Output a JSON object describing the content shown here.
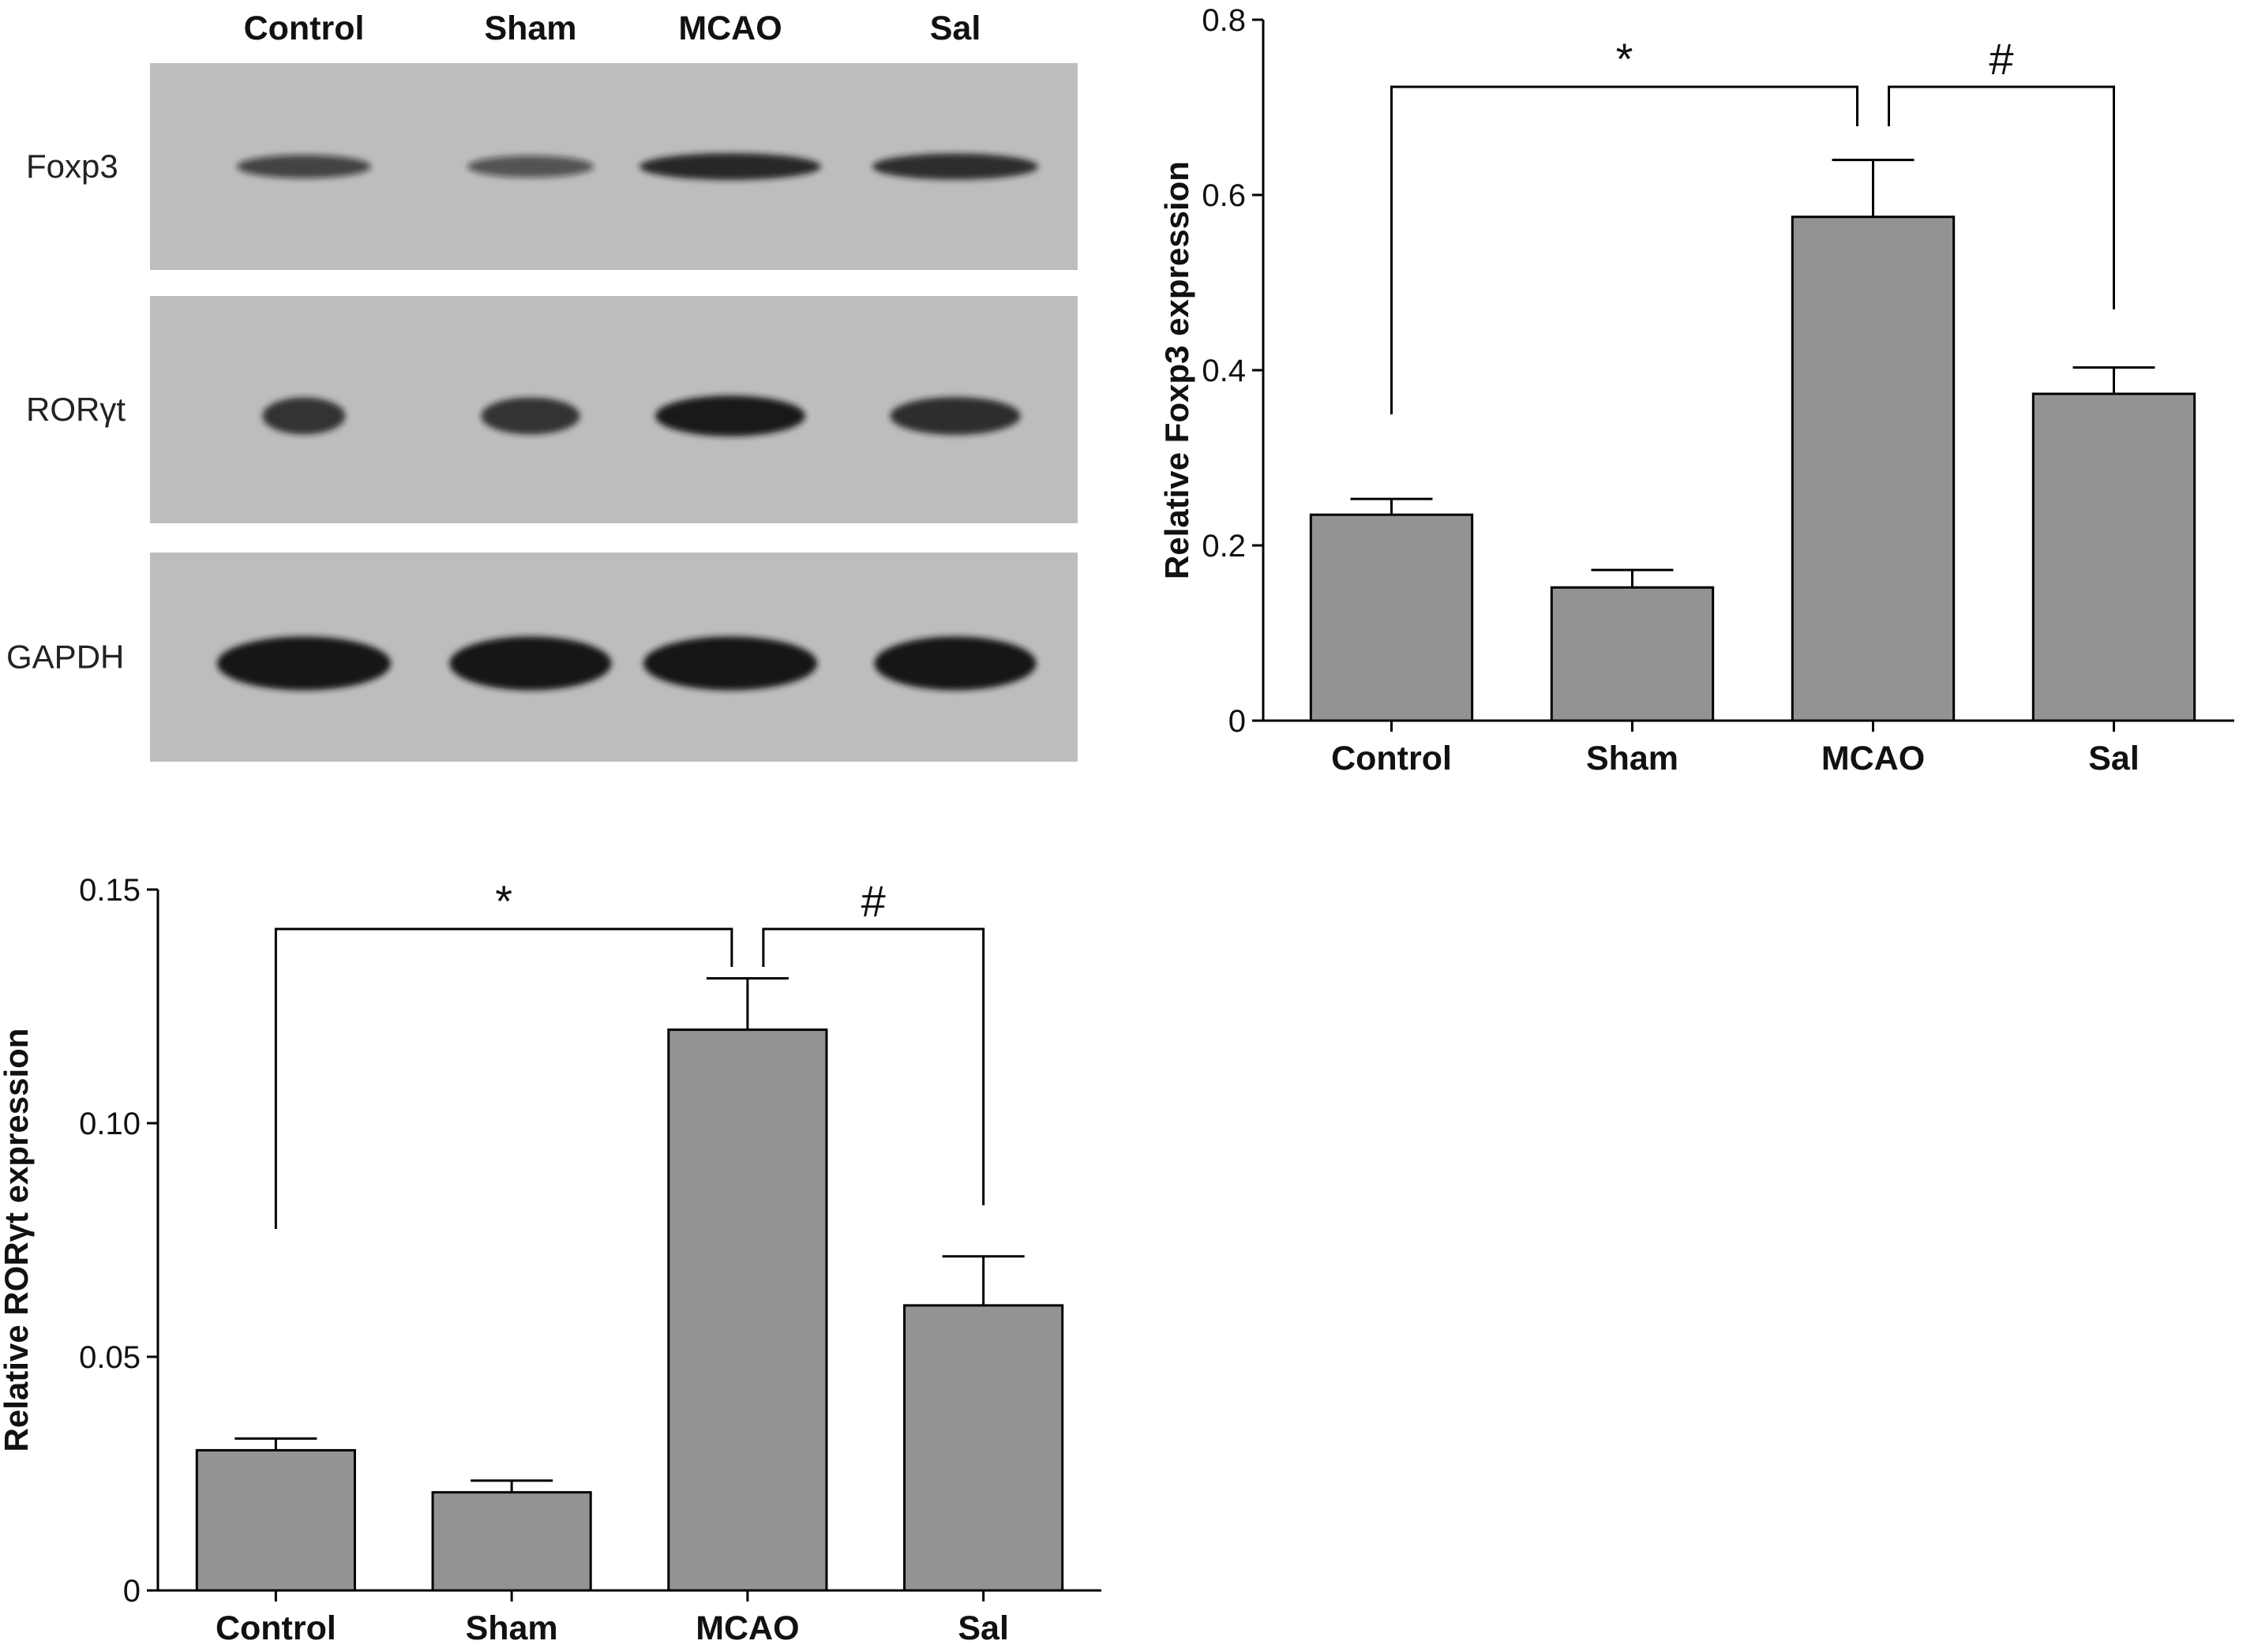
{
  "blot": {
    "lanes": [
      "Control",
      "Sham",
      "MCAO",
      "Sal"
    ],
    "rows": [
      {
        "label": "Foxp3",
        "intensities": [
          0.55,
          0.42,
          0.85,
          0.8
        ]
      },
      {
        "label": "RORγt",
        "intensities": [
          0.75,
          0.75,
          0.97,
          0.8
        ]
      },
      {
        "label": "GAPDH",
        "intensities": [
          1.0,
          1.0,
          1.0,
          1.0
        ]
      }
    ]
  },
  "colors": {
    "bar": "#939393",
    "axis": "#000000",
    "blot_bg": "#bdbdbd",
    "band": "#141414"
  },
  "chart_data": [
    {
      "type": "bar",
      "categories": [
        "Control",
        "Sham",
        "MCAO",
        "Sal"
      ],
      "values": [
        0.235,
        0.152,
        0.575,
        0.373
      ],
      "errors": [
        0.018,
        0.02,
        0.065,
        0.03
      ],
      "ylabel": "Relative Foxp3 expression",
      "ylim": [
        0,
        0.8
      ],
      "yticks": [
        0,
        0.2,
        0.4,
        0.6,
        0.8
      ],
      "ytick_labels": [
        "0",
        "0.2",
        "0.4",
        "0.6",
        "0.8"
      ],
      "significance": [
        {
          "from": "Control",
          "to": "MCAO",
          "label": "*"
        },
        {
          "from": "MCAO",
          "to": "Sal",
          "label": "#"
        }
      ]
    },
    {
      "type": "bar",
      "categories": [
        "Control",
        "Sham",
        "MCAO",
        "Sal"
      ],
      "values": [
        0.03,
        0.021,
        0.12,
        0.061
      ],
      "errors": [
        0.0025,
        0.0025,
        0.011,
        0.0105
      ],
      "ylabel": "Relative RORγt expression",
      "ylim": [
        0,
        0.15
      ],
      "yticks": [
        0,
        0.05,
        0.1,
        0.15
      ],
      "ytick_labels": [
        "0",
        "0.05",
        "0.10",
        "0.15"
      ],
      "significance": [
        {
          "from": "Control",
          "to": "MCAO",
          "label": "*"
        },
        {
          "from": "MCAO",
          "to": "Sal",
          "label": "#"
        }
      ]
    }
  ]
}
